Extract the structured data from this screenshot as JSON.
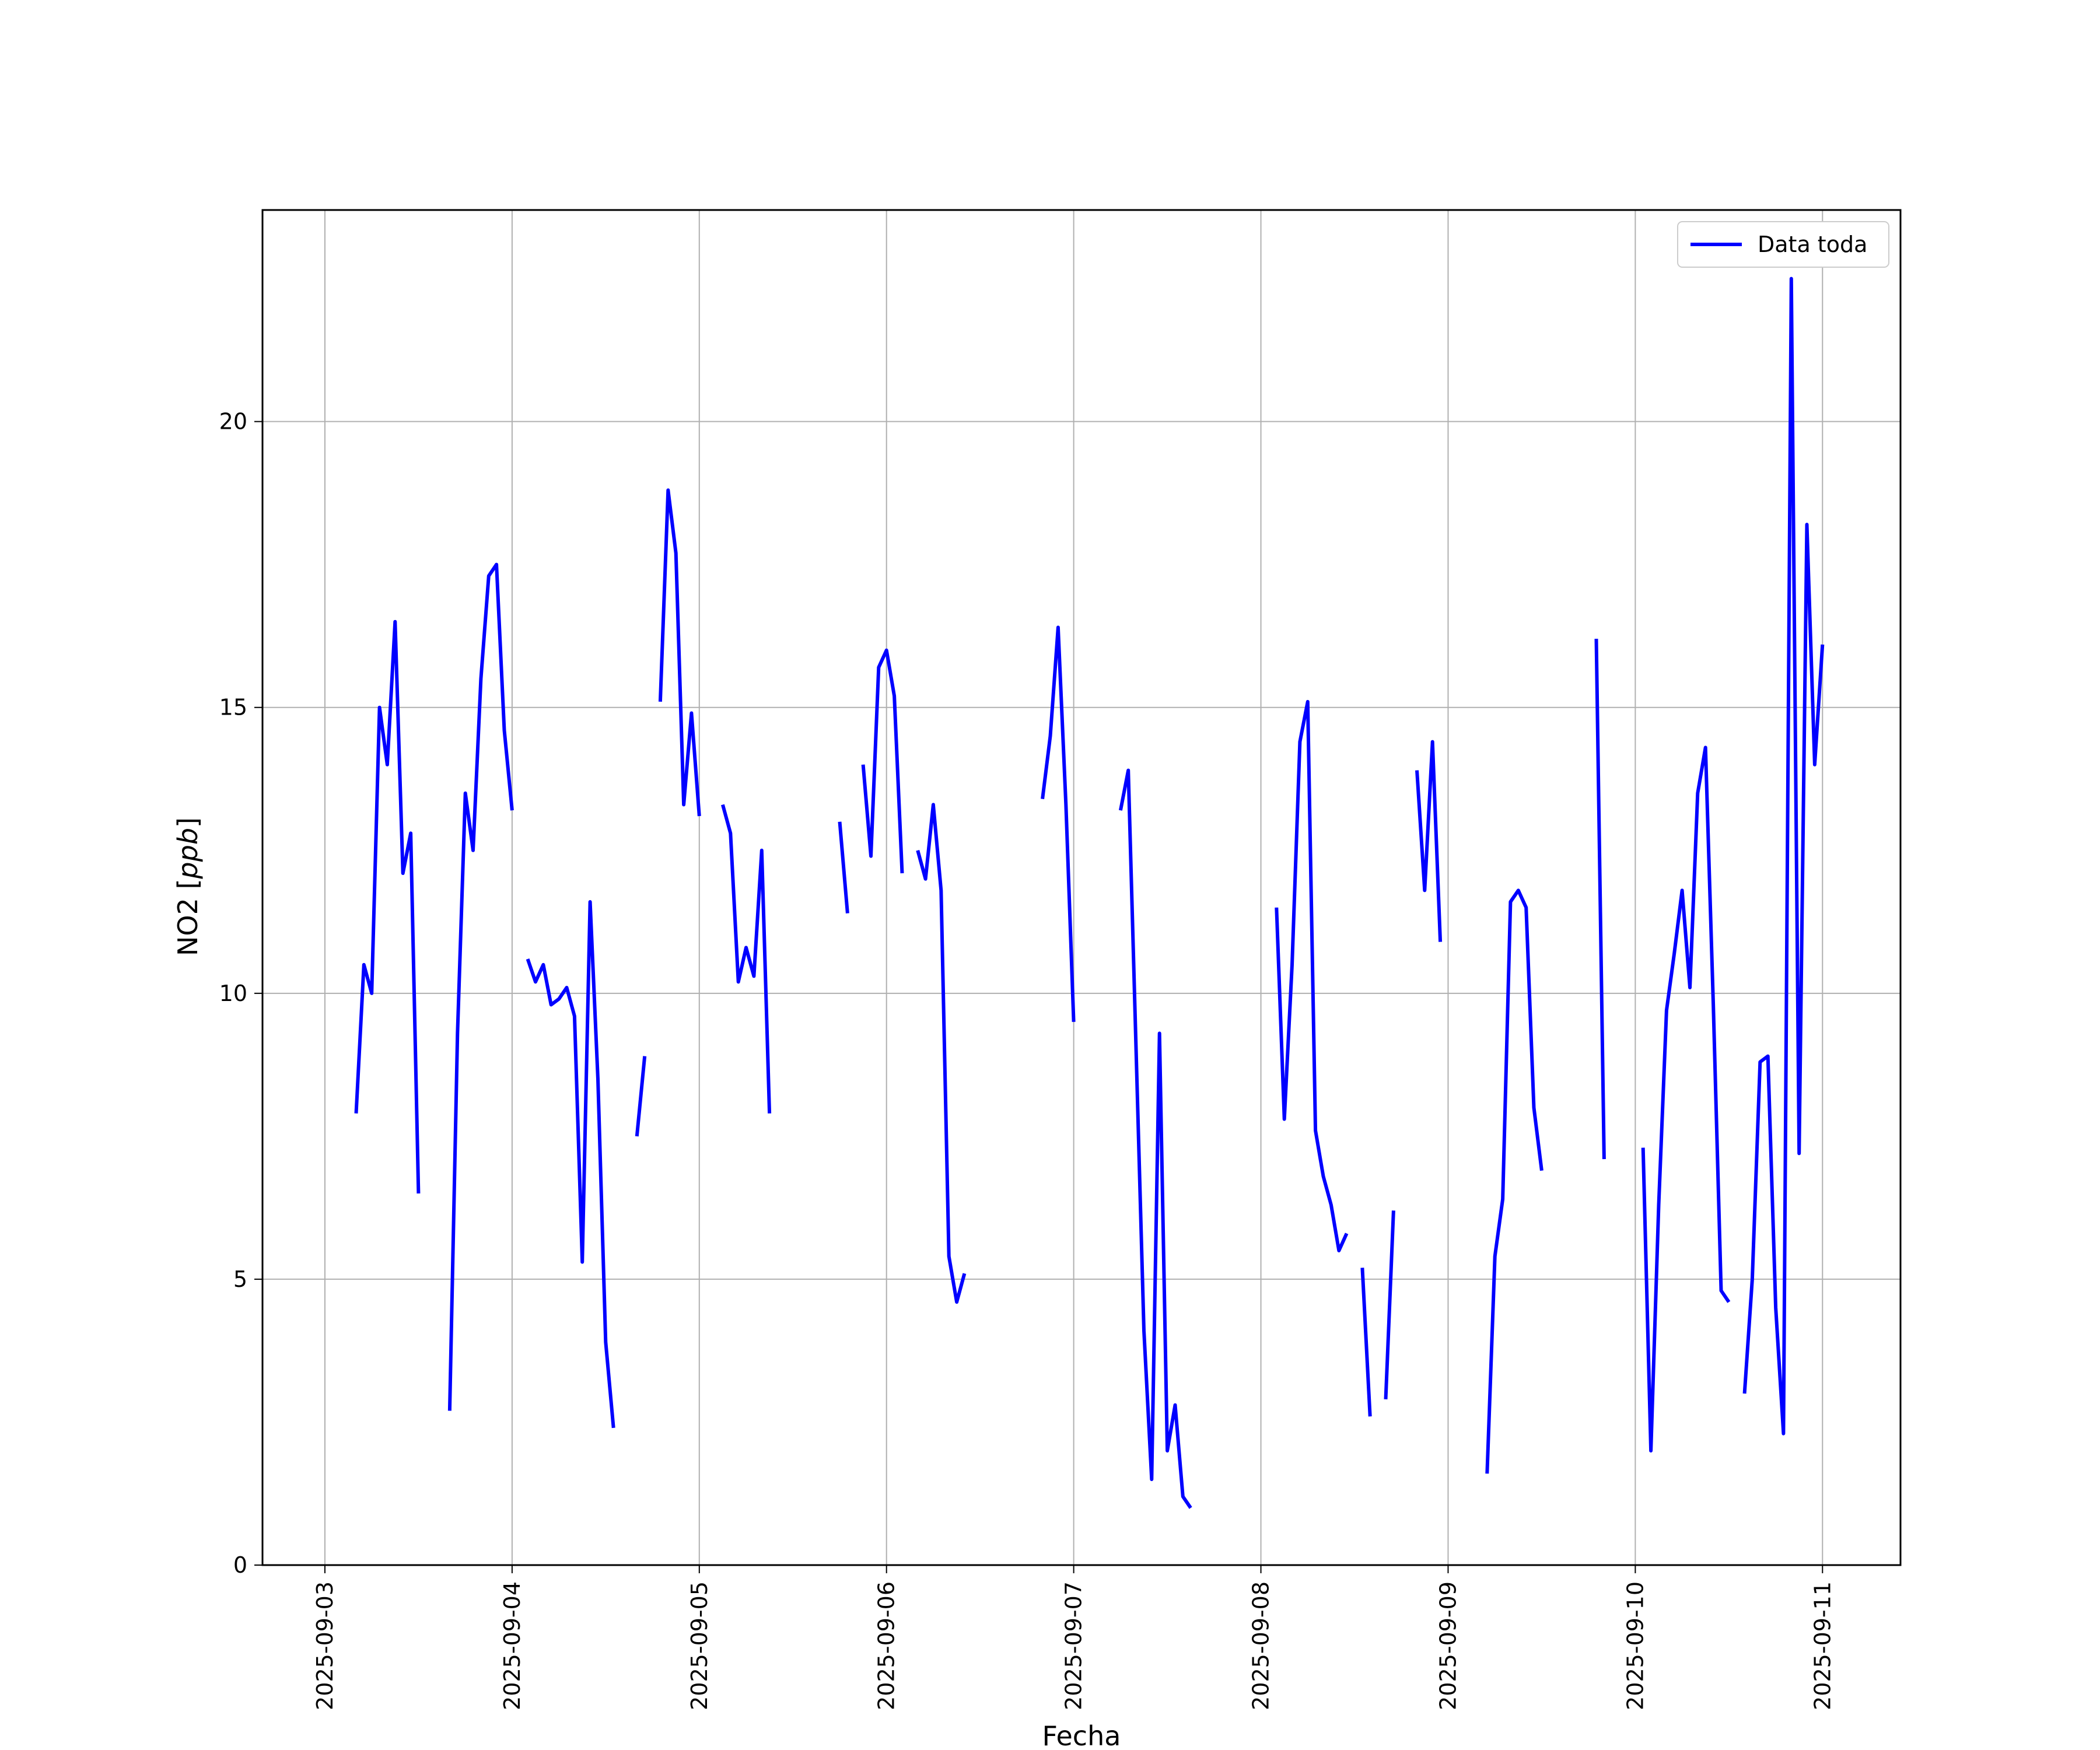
{
  "chart_data": {
    "type": "line",
    "xlabel": "Fecha",
    "ylabel": "NO2 [ppb]",
    "ylabel_parts": {
      "base": "NO2 [",
      "unit": "ppb",
      "close": "]"
    },
    "x_ticks": [
      "2025-09-03",
      "2025-09-04",
      "2025-09-05",
      "2025-09-06",
      "2025-09-07",
      "2025-09-08",
      "2025-09-09",
      "2025-09-10",
      "2025-09-11"
    ],
    "y_ticks": [
      0,
      5,
      10,
      15,
      20
    ],
    "xlim": [
      "2025-09-02 16:00",
      "2025-09-11 10:00"
    ],
    "ylim": [
      0,
      23.7
    ],
    "grid": true,
    "legend": {
      "position": "top-right"
    },
    "series": [
      {
        "name": "Data toda",
        "color": "#0000ff",
        "segments": [
          [
            [
              "2025-09-03 04:00",
              7.9
            ],
            [
              "2025-09-03 05:00",
              10.5
            ],
            [
              "2025-09-03 06:00",
              10.0
            ],
            [
              "2025-09-03 07:00",
              15.0
            ],
            [
              "2025-09-03 08:00",
              14.0
            ],
            [
              "2025-09-03 09:00",
              16.5
            ],
            [
              "2025-09-03 10:00",
              12.1
            ],
            [
              "2025-09-03 11:00",
              12.8
            ],
            [
              "2025-09-03 12:00",
              6.5
            ]
          ],
          [
            [
              "2025-09-03 16:00",
              2.7
            ],
            [
              "2025-09-03 17:00",
              9.3
            ],
            [
              "2025-09-03 18:00",
              13.5
            ],
            [
              "2025-09-03 19:00",
              12.5
            ],
            [
              "2025-09-03 20:00",
              15.5
            ],
            [
              "2025-09-03 21:00",
              17.3
            ],
            [
              "2025-09-03 22:00",
              17.5
            ],
            [
              "2025-09-03 23:00",
              14.6
            ],
            [
              "2025-09-04 00:00",
              13.2
            ]
          ],
          [
            [
              "2025-09-04 02:00",
              10.6
            ],
            [
              "2025-09-04 03:00",
              10.2
            ],
            [
              "2025-09-04 04:00",
              10.5
            ],
            [
              "2025-09-04 05:00",
              9.8
            ],
            [
              "2025-09-04 06:00",
              9.9
            ],
            [
              "2025-09-04 07:00",
              10.1
            ],
            [
              "2025-09-04 08:00",
              9.6
            ],
            [
              "2025-09-04 09:00",
              5.3
            ],
            [
              "2025-09-04 10:00",
              11.6
            ],
            [
              "2025-09-04 11:00",
              8.5
            ],
            [
              "2025-09-04 12:00",
              3.9
            ],
            [
              "2025-09-04 13:00",
              2.4
            ]
          ],
          [
            [
              "2025-09-04 16:00",
              7.5
            ],
            [
              "2025-09-04 17:00",
              8.9
            ]
          ],
          [
            [
              "2025-09-04 19:00",
              15.1
            ],
            [
              "2025-09-04 20:00",
              18.8
            ],
            [
              "2025-09-04 21:00",
              17.7
            ],
            [
              "2025-09-04 22:00",
              13.3
            ],
            [
              "2025-09-04 23:00",
              14.9
            ],
            [
              "2025-09-05 00:00",
              13.1
            ]
          ],
          [
            [
              "2025-09-05 03:00",
              13.3
            ],
            [
              "2025-09-05 04:00",
              12.8
            ],
            [
              "2025-09-05 05:00",
              10.2
            ],
            [
              "2025-09-05 06:00",
              10.8
            ],
            [
              "2025-09-05 07:00",
              10.3
            ],
            [
              "2025-09-05 08:00",
              12.5
            ],
            [
              "2025-09-05 09:00",
              7.9
            ]
          ],
          [
            [
              "2025-09-05 18:00",
              13.0
            ],
            [
              "2025-09-05 19:00",
              11.4
            ]
          ],
          [
            [
              "2025-09-05 21:00",
              14.0
            ],
            [
              "2025-09-05 22:00",
              12.4
            ],
            [
              "2025-09-05 23:00",
              15.7
            ],
            [
              "2025-09-06 00:00",
              16.0
            ],
            [
              "2025-09-06 01:00",
              15.2
            ],
            [
              "2025-09-06 02:00",
              12.1
            ]
          ],
          [
            [
              "2025-09-06 04:00",
              12.5
            ],
            [
              "2025-09-06 05:00",
              12.0
            ],
            [
              "2025-09-06 06:00",
              13.3
            ],
            [
              "2025-09-06 07:00",
              11.8
            ],
            [
              "2025-09-06 08:00",
              5.4
            ],
            [
              "2025-09-06 09:00",
              4.6
            ],
            [
              "2025-09-06 10:00",
              5.1
            ]
          ],
          [
            [
              "2025-09-06 20:00",
              13.4
            ],
            [
              "2025-09-06 21:00",
              14.5
            ],
            [
              "2025-09-06 22:00",
              16.4
            ],
            [
              "2025-09-06 23:00",
              13.3
            ],
            [
              "2025-09-07 00:00",
              9.5
            ]
          ],
          [
            [
              "2025-09-07 06:00",
              13.2
            ],
            [
              "2025-09-07 07:00",
              13.9
            ],
            [
              "2025-09-07 08:00",
              9.0
            ],
            [
              "2025-09-07 09:00",
              4.1
            ],
            [
              "2025-09-07 10:00",
              1.5
            ],
            [
              "2025-09-07 11:00",
              9.3
            ],
            [
              "2025-09-07 12:00",
              2.0
            ],
            [
              "2025-09-07 13:00",
              2.8
            ],
            [
              "2025-09-07 14:00",
              1.2
            ],
            [
              "2025-09-07 15:00",
              1.0
            ]
          ],
          [
            [
              "2025-09-08 02:00",
              11.5
            ],
            [
              "2025-09-08 03:00",
              7.8
            ],
            [
              "2025-09-08 04:00",
              10.5
            ],
            [
              "2025-09-08 05:00",
              14.4
            ],
            [
              "2025-09-08 06:00",
              15.1
            ],
            [
              "2025-09-08 07:00",
              7.6
            ],
            [
              "2025-09-08 08:00",
              6.8
            ],
            [
              "2025-09-08 09:00",
              6.3
            ],
            [
              "2025-09-08 10:00",
              5.5
            ],
            [
              "2025-09-08 11:00",
              5.8
            ]
          ],
          [
            [
              "2025-09-08 13:00",
              5.2
            ],
            [
              "2025-09-08 14:00",
              2.6
            ]
          ],
          [
            [
              "2025-09-08 16:00",
              2.9
            ],
            [
              "2025-09-08 17:00",
              6.2
            ]
          ],
          [
            [
              "2025-09-08 20:00",
              13.9
            ],
            [
              "2025-09-08 21:00",
              11.8
            ],
            [
              "2025-09-08 22:00",
              14.4
            ],
            [
              "2025-09-08 23:00",
              10.9
            ]
          ],
          [
            [
              "2025-09-09 05:00",
              1.6
            ],
            [
              "2025-09-09 06:00",
              5.4
            ],
            [
              "2025-09-09 07:00",
              6.4
            ],
            [
              "2025-09-09 08:00",
              11.6
            ],
            [
              "2025-09-09 09:00",
              11.8
            ],
            [
              "2025-09-09 10:00",
              11.5
            ],
            [
              "2025-09-09 11:00",
              8.0
            ],
            [
              "2025-09-09 12:00",
              6.9
            ]
          ],
          [
            [
              "2025-09-09 19:00",
              16.2
            ],
            [
              "2025-09-09 20:00",
              7.1
            ]
          ],
          [
            [
              "2025-09-10 01:00",
              7.3
            ],
            [
              "2025-09-10 02:00",
              2.0
            ],
            [
              "2025-09-10 03:00",
              6.3
            ],
            [
              "2025-09-10 04:00",
              9.7
            ],
            [
              "2025-09-10 05:00",
              10.7
            ],
            [
              "2025-09-10 06:00",
              11.8
            ],
            [
              "2025-09-10 07:00",
              10.1
            ],
            [
              "2025-09-10 08:00",
              13.5
            ],
            [
              "2025-09-10 09:00",
              14.3
            ],
            [
              "2025-09-10 10:00",
              9.8
            ],
            [
              "2025-09-10 11:00",
              4.8
            ],
            [
              "2025-09-10 12:00",
              4.6
            ]
          ],
          [
            [
              "2025-09-10 14:00",
              3.0
            ],
            [
              "2025-09-10 15:00",
              5.0
            ],
            [
              "2025-09-10 16:00",
              8.8
            ],
            [
              "2025-09-10 17:00",
              8.9
            ],
            [
              "2025-09-10 18:00",
              4.5
            ],
            [
              "2025-09-10 19:00",
              2.3
            ],
            [
              "2025-09-10 20:00",
              22.5
            ],
            [
              "2025-09-10 21:00",
              7.2
            ],
            [
              "2025-09-10 22:00",
              18.2
            ],
            [
              "2025-09-10 23:00",
              14.0
            ],
            [
              "2025-09-11 00:00",
              16.1
            ]
          ]
        ]
      }
    ]
  }
}
